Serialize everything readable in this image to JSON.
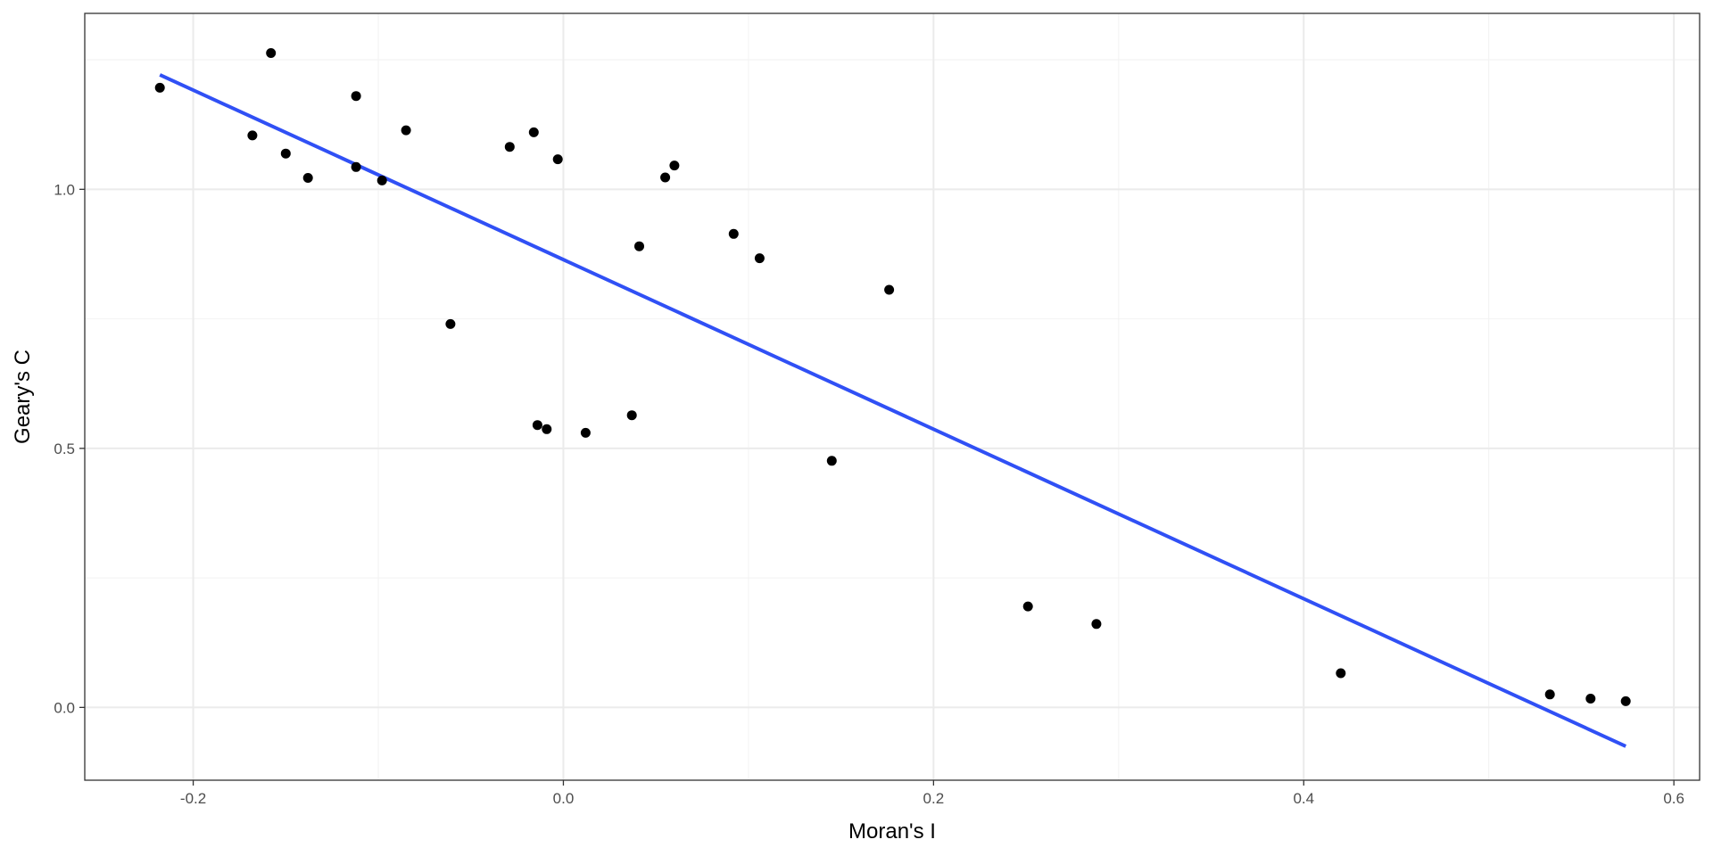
{
  "chart_data": {
    "type": "scatter",
    "title": "",
    "xlabel": "Moran's I",
    "ylabel": "Geary's C",
    "xlim": [
      -0.2586,
      0.6139
    ],
    "ylim": [
      -0.1405,
      1.3396
    ],
    "x_ticks": [
      -0.2,
      0.0,
      0.2,
      0.4,
      0.6
    ],
    "x_tick_labels": [
      "-0.2",
      "0.0",
      "0.2",
      "0.4",
      "0.6"
    ],
    "y_ticks": [
      0.0,
      0.5,
      1.0
    ],
    "y_tick_labels": [
      "0.0",
      "0.5",
      "1.0"
    ],
    "grid": true,
    "series": [
      {
        "type": "scatter",
        "color": "#000000",
        "points": [
          {
            "x": -0.218,
            "y": 1.196
          },
          {
            "x": -0.158,
            "y": 1.263
          },
          {
            "x": -0.168,
            "y": 1.104
          },
          {
            "x": -0.15,
            "y": 1.069
          },
          {
            "x": -0.138,
            "y": 1.022
          },
          {
            "x": -0.112,
            "y": 1.18
          },
          {
            "x": -0.112,
            "y": 1.043
          },
          {
            "x": -0.098,
            "y": 1.017
          },
          {
            "x": -0.085,
            "y": 1.114
          },
          {
            "x": -0.061,
            "y": 0.74
          },
          {
            "x": -0.029,
            "y": 1.082
          },
          {
            "x": -0.016,
            "y": 1.11
          },
          {
            "x": -0.014,
            "y": 0.545
          },
          {
            "x": -0.009,
            "y": 0.537
          },
          {
            "x": -0.003,
            "y": 1.058
          },
          {
            "x": 0.012,
            "y": 0.53
          },
          {
            "x": 0.037,
            "y": 0.564
          },
          {
            "x": 0.041,
            "y": 0.89
          },
          {
            "x": 0.055,
            "y": 1.023
          },
          {
            "x": 0.06,
            "y": 1.046
          },
          {
            "x": 0.092,
            "y": 0.914
          },
          {
            "x": 0.106,
            "y": 0.867
          },
          {
            "x": 0.145,
            "y": 0.476
          },
          {
            "x": 0.176,
            "y": 0.806
          },
          {
            "x": 0.251,
            "y": 0.195
          },
          {
            "x": 0.288,
            "y": 0.161
          },
          {
            "x": 0.42,
            "y": 0.066
          },
          {
            "x": 0.533,
            "y": 0.025
          },
          {
            "x": 0.555,
            "y": 0.017
          },
          {
            "x": 0.574,
            "y": 0.012
          }
        ]
      },
      {
        "type": "line",
        "color": "#3050f5",
        "points": [
          {
            "x": -0.218,
            "y": 1.221
          },
          {
            "x": 0.574,
            "y": -0.075
          }
        ]
      }
    ]
  }
}
